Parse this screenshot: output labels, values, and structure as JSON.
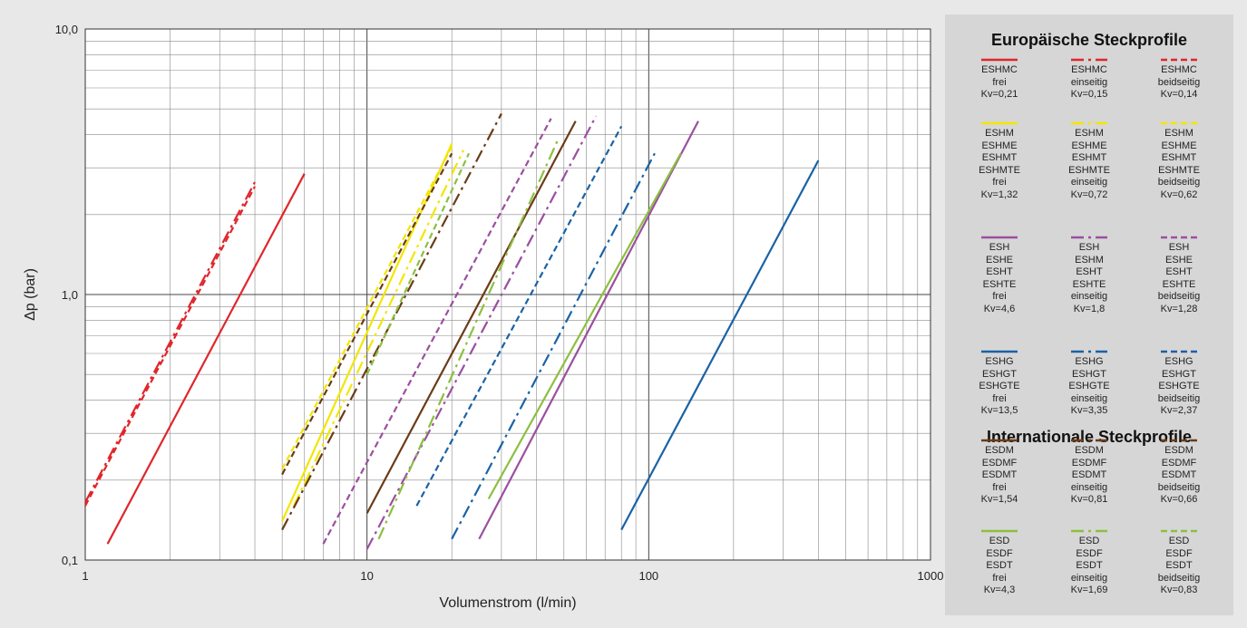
{
  "chart_data": {
    "type": "line",
    "xlabel": "Volumenstrom (l/min)",
    "ylabel": "Δp (bar)",
    "xscale": "log",
    "yscale": "log",
    "xlim": [
      1,
      1000
    ],
    "ylim": [
      0.1,
      10
    ],
    "x_tick_labels": [
      "1",
      "10",
      "100",
      "1000"
    ],
    "y_tick_labels": [
      "0,1",
      "1,0",
      "10,0"
    ],
    "grid": true,
    "legend_placement": "right",
    "legend_groups": [
      {
        "title": "Europäische Steckprofile",
        "start_series": 0
      },
      {
        "title": "Internationale Steckprofile",
        "start_series": 12
      }
    ],
    "series": [
      {
        "label_lines": [
          "ESHMC",
          "frei",
          "Kv=0,21"
        ],
        "color": "#e0262b",
        "dash": "solid",
        "x": [
          1.2,
          6
        ],
        "y": [
          0.115,
          2.85
        ]
      },
      {
        "label_lines": [
          "ESHMC",
          "einseitig",
          "Kv=0,15"
        ],
        "color": "#e0262b",
        "dash": "dashdot",
        "x": [
          1,
          4
        ],
        "y": [
          0.165,
          2.65
        ]
      },
      {
        "label_lines": [
          "ESHMC",
          "beidseitig",
          "Kv=0,14"
        ],
        "color": "#e0262b",
        "dash": "dashed",
        "x": [
          1,
          4
        ],
        "y": [
          0.16,
          2.55
        ]
      },
      {
        "label_lines": [
          "ESHM",
          "ESHME",
          "ESHMT",
          "ESHMTE",
          "frei",
          "Kv=1,32"
        ],
        "color": "#f2e600",
        "dash": "solid",
        "x": [
          5,
          20
        ],
        "y": [
          0.14,
          3.7
        ]
      },
      {
        "label_lines": [
          "ESHM",
          "ESHME",
          "ESHMT",
          "ESHMTE",
          "einseitig",
          "Kv=0,72"
        ],
        "color": "#f2e600",
        "dash": "dashdot",
        "x": [
          5.5,
          22
        ],
        "y": [
          0.16,
          3.5
        ]
      },
      {
        "label_lines": [
          "ESHM",
          "ESHME",
          "ESHMT",
          "ESHMTE",
          "beidseitig",
          "Kv=0,62"
        ],
        "color": "#f2e600",
        "dash": "dashed",
        "x": [
          5,
          20
        ],
        "y": [
          0.22,
          3.6
        ]
      },
      {
        "label_lines": [
          "ESH",
          "ESHE",
          "ESHT",
          "ESHTE",
          "frei",
          "Kv=4,6"
        ],
        "color": "#9b4f9f",
        "dash": "solid",
        "x": [
          25,
          150
        ],
        "y": [
          0.12,
          4.5
        ]
      },
      {
        "label_lines": [
          "ESH",
          "ESHM",
          "ESHT",
          "ESHTE",
          "einseitig",
          "Kv=1,8"
        ],
        "color": "#9b4f9f",
        "dash": "dashdot",
        "x": [
          10,
          65
        ],
        "y": [
          0.11,
          4.7
        ]
      },
      {
        "label_lines": [
          "ESH",
          "ESHE",
          "ESHT",
          "ESHTE",
          "beidseitig",
          "Kv=1,28"
        ],
        "color": "#9b4f9f",
        "dash": "dashed",
        "x": [
          7,
          45
        ],
        "y": [
          0.115,
          4.6
        ]
      },
      {
        "label_lines": [
          "ESHG",
          "ESHGT",
          "ESHGTE",
          "frei",
          "Kv=13,5"
        ],
        "color": "#1a62a6",
        "dash": "solid",
        "x": [
          80,
          400
        ],
        "y": [
          0.13,
          3.2
        ]
      },
      {
        "label_lines": [
          "ESHG",
          "ESHGT",
          "ESHGTE",
          "einseitig",
          "Kv=3,35"
        ],
        "color": "#1a62a6",
        "dash": "dashdot",
        "x": [
          20,
          105
        ],
        "y": [
          0.12,
          3.4
        ]
      },
      {
        "label_lines": [
          "ESHG",
          "ESHGT",
          "ESHGTE",
          "beidseitig",
          "Kv=2,37"
        ],
        "color": "#1a62a6",
        "dash": "dashed",
        "x": [
          15,
          80
        ],
        "y": [
          0.16,
          4.3
        ]
      },
      {
        "label_lines": [
          "ESDM",
          "ESDMF",
          "ESDMT",
          "frei",
          "Kv=1,54"
        ],
        "color": "#6b3b17",
        "dash": "solid",
        "x": [
          10,
          55
        ],
        "y": [
          0.15,
          4.5
        ]
      },
      {
        "label_lines": [
          "ESDM",
          "ESDMF",
          "ESDMT",
          "einseitig",
          "Kv=0,81"
        ],
        "color": "#6b3b17",
        "dash": "dashdot",
        "x": [
          5,
          30
        ],
        "y": [
          0.13,
          4.8
        ]
      },
      {
        "label_lines": [
          "ESDM",
          "ESDMF",
          "ESDMT",
          "beidseitig",
          "Kv=0,66"
        ],
        "color": "#6b3b17",
        "dash": "dashed",
        "x": [
          5,
          20
        ],
        "y": [
          0.21,
          3.4
        ]
      },
      {
        "label_lines": [
          "ESD",
          "ESDF",
          "ESDT",
          "frei",
          "Kv=4,3"
        ],
        "color": "#8cbf3f",
        "dash": "solid",
        "x": [
          27,
          130
        ],
        "y": [
          0.17,
          3.4
        ]
      },
      {
        "label_lines": [
          "ESD",
          "ESDF",
          "ESDT",
          "einseitig",
          "Kv=1,69"
        ],
        "color": "#8cbf3f",
        "dash": "dashdot",
        "x": [
          11,
          48
        ],
        "y": [
          0.12,
          3.9
        ]
      },
      {
        "label_lines": [
          "ESD",
          "ESDF",
          "ESDT",
          "beidseitig",
          "Kv=0,83"
        ],
        "color": "#8cbf3f",
        "dash": "dashed",
        "x": [
          10,
          23
        ],
        "y": [
          0.5,
          3.4
        ]
      }
    ]
  }
}
